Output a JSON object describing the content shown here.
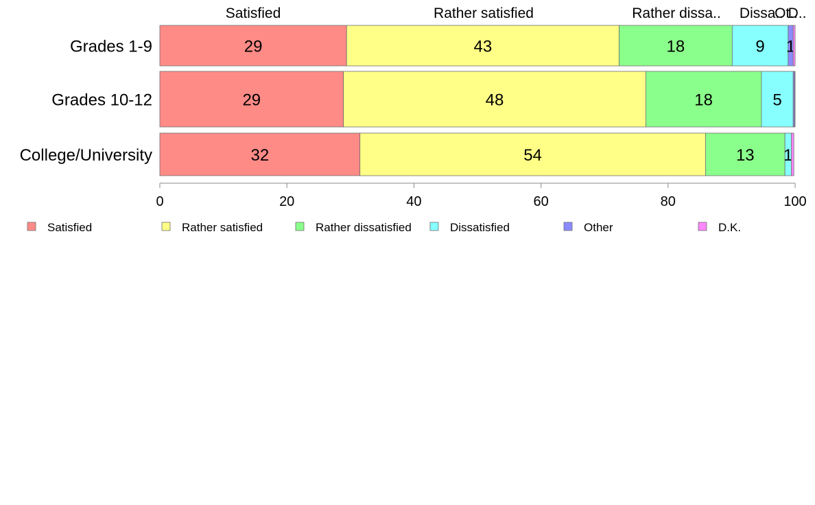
{
  "chart_data": {
    "type": "bar",
    "orientation": "horizontal",
    "stacked": true,
    "categories": [
      "Grades 1-9",
      "Grades 10-12",
      "College/University"
    ],
    "series": [
      {
        "name": "Satisfied",
        "color": "#ff8b87",
        "values": [
          29.4,
          28.9,
          31.5
        ],
        "labels": [
          "29",
          "29",
          "32"
        ],
        "top_label": "Satisfied"
      },
      {
        "name": "Rather satisfied",
        "color": "#ffff87",
        "values": [
          42.9,
          47.6,
          54.4
        ],
        "labels": [
          "43",
          "48",
          "54"
        ],
        "top_label": "Rather satisfied"
      },
      {
        "name": "Rather dissatisfied",
        "color": "#8bff8b",
        "values": [
          17.8,
          18.2,
          12.5
        ],
        "labels": [
          "18",
          "18",
          "13"
        ],
        "top_label": "Rather dissa.."
      },
      {
        "name": "Dissatisfied",
        "color": "#87ffff",
        "values": [
          8.8,
          5.0,
          1.0
        ],
        "labels": [
          "9",
          "5",
          "1"
        ],
        "top_label": "Dissa.."
      },
      {
        "name": "Other",
        "color": "#8b8bff",
        "values": [
          0.8,
          0.2,
          0.0
        ],
        "labels": [
          "1",
          "",
          ""
        ],
        "top_label": "Ot.."
      },
      {
        "name": "D.K.",
        "color": "#ff87ff",
        "values": [
          0.3,
          0.1,
          0.4
        ],
        "labels": [
          "",
          "",
          ""
        ],
        "top_label": "D.."
      }
    ],
    "xlim": [
      0,
      100
    ],
    "xticks": [
      "0",
      "20",
      "40",
      "60",
      "80",
      "100"
    ],
    "grid": false,
    "legend_position": "bottom"
  }
}
